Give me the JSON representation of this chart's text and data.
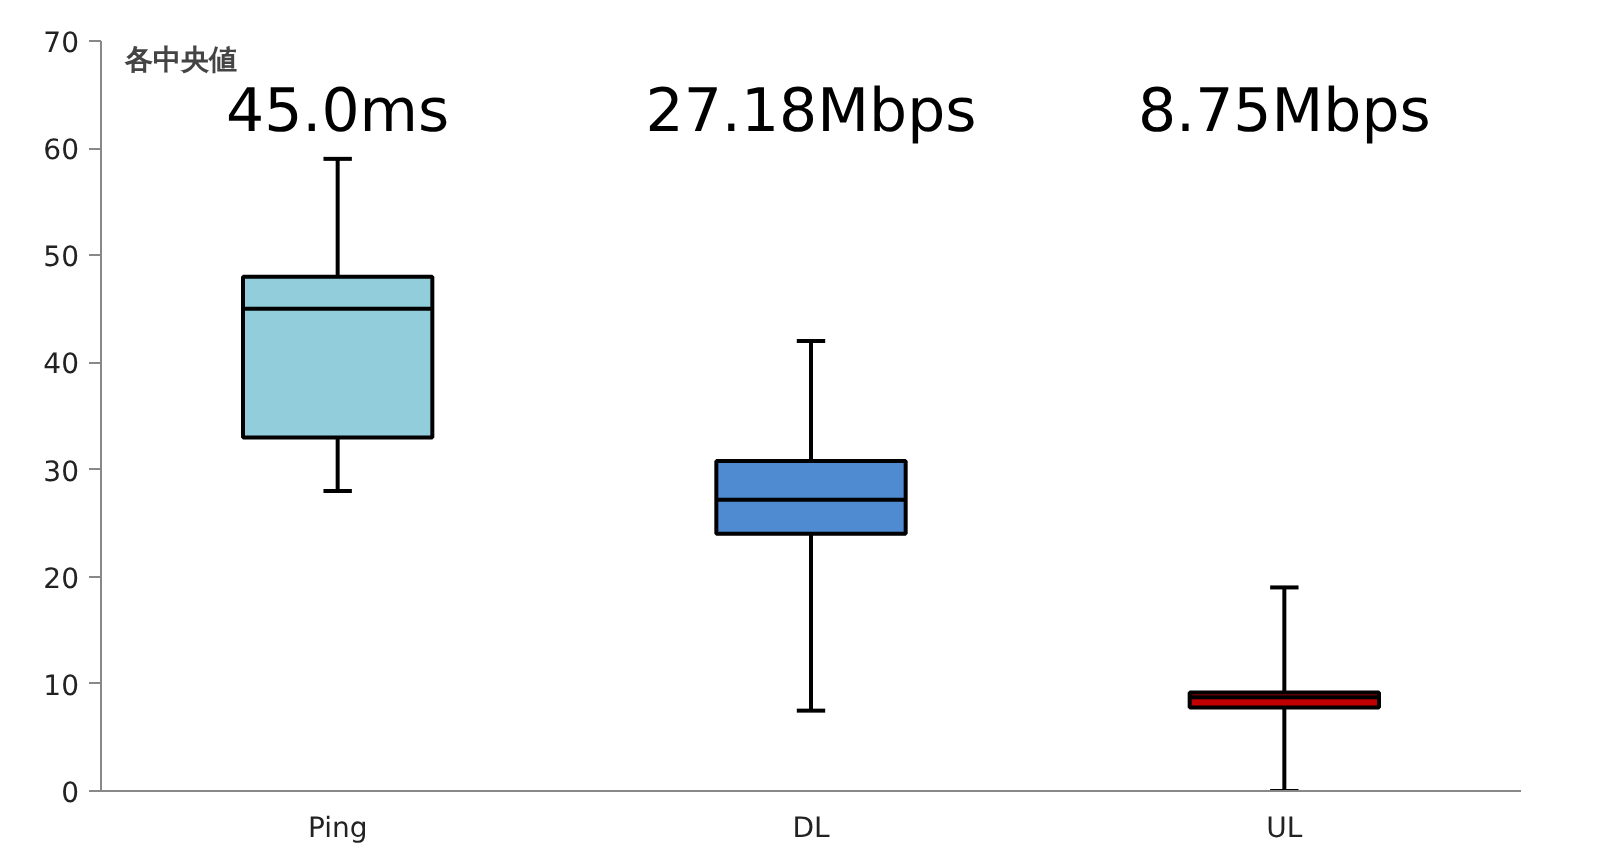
{
  "chart_data": {
    "type": "box",
    "categories": [
      "Ping",
      "DL",
      "UL"
    ],
    "boxes": [
      {
        "low": 28,
        "q1": 33,
        "median": 45.0,
        "q3": 48,
        "high": 59
      },
      {
        "low": 7.5,
        "q1": 24,
        "median": 27.18,
        "q3": 30.8,
        "high": 42
      },
      {
        "low": 0,
        "q1": 7.8,
        "median": 8.75,
        "q3": 9.2,
        "high": 19
      }
    ],
    "colors": [
      "#92cddc",
      "#4f8bd0",
      "#c00000"
    ],
    "ylim": [
      0,
      70
    ],
    "yticks": [
      0,
      10,
      20,
      30,
      40,
      50,
      60,
      70
    ],
    "grid": false,
    "annotations": [
      "各中央値",
      "45.0ms",
      "27.18Mbps",
      "8.75Mbps"
    ]
  }
}
